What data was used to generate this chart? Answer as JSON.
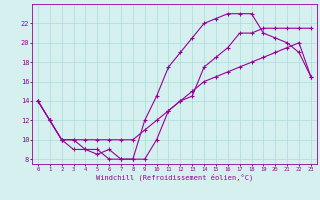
{
  "xlabel": "Windchill (Refroidissement éolien,°C)",
  "ylabel": "",
  "background_color": "#d6f0f0",
  "line_color": "#990099",
  "grid_color": "#aadddd",
  "xlim": [
    -0.5,
    23.5
  ],
  "ylim": [
    7.5,
    24
  ],
  "xticks": [
    0,
    1,
    2,
    3,
    4,
    5,
    6,
    7,
    8,
    9,
    10,
    11,
    12,
    13,
    14,
    15,
    16,
    17,
    18,
    19,
    20,
    21,
    22,
    23
  ],
  "yticks": [
    8,
    10,
    12,
    14,
    16,
    18,
    20,
    22
  ],
  "line1_x": [
    0,
    1,
    2,
    3,
    4,
    5,
    6,
    7,
    8,
    9,
    10,
    11,
    12,
    13,
    14,
    15,
    16,
    17,
    18,
    19,
    20,
    21,
    22,
    23
  ],
  "line1_y": [
    14,
    12,
    10,
    10,
    9,
    9,
    8,
    8,
    8,
    12,
    14.5,
    17.5,
    19,
    20.5,
    22,
    22.5,
    23,
    23,
    23,
    21,
    20.5,
    20,
    19,
    16.5
  ],
  "line2_x": [
    0,
    1,
    2,
    3,
    4,
    5,
    6,
    7,
    8,
    9,
    10,
    11,
    12,
    13,
    14,
    15,
    16,
    17,
    18,
    19,
    20,
    21,
    22,
    23
  ],
  "line2_y": [
    14,
    12,
    10,
    9,
    9,
    8.5,
    9,
    8,
    8,
    8,
    10,
    13,
    14,
    14.5,
    17.5,
    18.5,
    19.5,
    21,
    21,
    21.5,
    21.5,
    21.5,
    21.5,
    21.5
  ],
  "line3_x": [
    0,
    1,
    2,
    3,
    4,
    5,
    6,
    7,
    8,
    9,
    10,
    11,
    12,
    13,
    14,
    15,
    16,
    17,
    18,
    19,
    20,
    21,
    22,
    23
  ],
  "line3_y": [
    14,
    12,
    10,
    10,
    10,
    10,
    10,
    10,
    10,
    11,
    12,
    13,
    14,
    15,
    16,
    16.5,
    17,
    17.5,
    18,
    18.5,
    19,
    19.5,
    20,
    16.5
  ]
}
